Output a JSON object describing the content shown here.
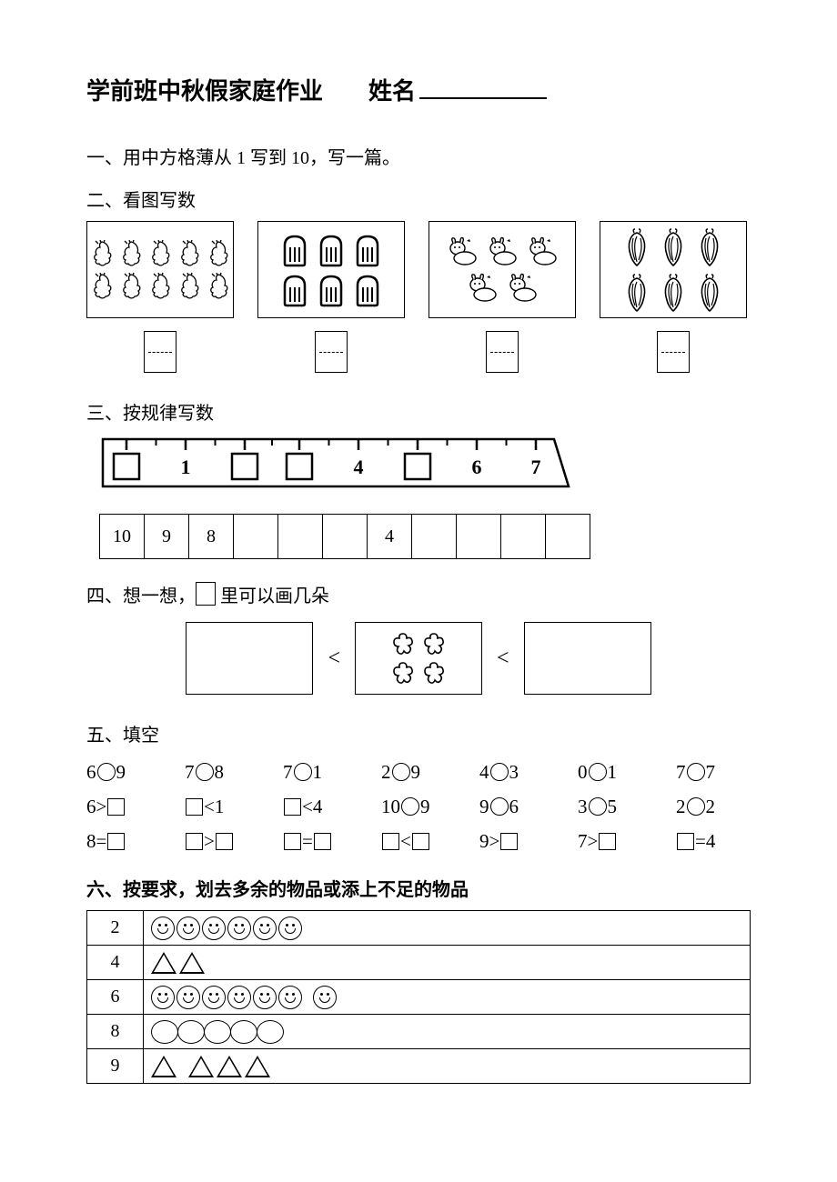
{
  "title": "学前班中秋假家庭作业",
  "name_label": "姓名",
  "q1": "一、用中方格薄从 1 写到 10，写一篇。",
  "q2": {
    "heading": "二、看图写数",
    "boxes": [
      {
        "width": 162,
        "rows": [
          5,
          5
        ],
        "icon": "shrimp"
      },
      {
        "width": 162,
        "rows": [
          3,
          3
        ],
        "icon": "bread"
      },
      {
        "width": 162,
        "rows": [
          3,
          2
        ],
        "icon": "bunny"
      },
      {
        "width": 162,
        "rows": [
          3,
          3
        ],
        "icon": "veg"
      }
    ]
  },
  "q3": {
    "heading": "三、按规律写数",
    "ruler_visible": [
      "1",
      "4",
      "6",
      "7"
    ],
    "table": [
      "10",
      "9",
      "8",
      "",
      "",
      "",
      "4",
      "",
      "",
      "",
      ""
    ]
  },
  "q4": {
    "heading_pre": "四、想一想，",
    "heading_post": " 里可以画几朵",
    "op": "<",
    "flowers": [
      2,
      2
    ]
  },
  "q5": {
    "heading": "五、填空",
    "rows": [
      [
        {
          "t": "nc",
          "a": "6",
          "b": "9"
        },
        {
          "t": "nc",
          "a": "7",
          "b": "8"
        },
        {
          "t": "nc",
          "a": "7",
          "b": "1"
        },
        {
          "t": "nc",
          "a": "2",
          "b": "9"
        },
        {
          "t": "nc",
          "a": "4",
          "b": "3"
        },
        {
          "t": "nc",
          "a": "0",
          "b": "1"
        },
        {
          "t": "nc",
          "a": "7",
          "b": "7"
        }
      ],
      [
        {
          "t": "ns",
          "a": "6",
          "op": ">"
        },
        {
          "t": "sn",
          "op": "<",
          "b": "1"
        },
        {
          "t": "sn",
          "op": "<",
          "b": "4"
        },
        {
          "t": "nc",
          "a": "10",
          "b": "9"
        },
        {
          "t": "nc",
          "a": "9",
          "b": "6"
        },
        {
          "t": "nc",
          "a": "3",
          "b": "5"
        },
        {
          "t": "nc",
          "a": "2",
          "b": "2"
        }
      ],
      [
        {
          "t": "ns",
          "a": "8",
          "op": "="
        },
        {
          "t": "ss",
          "op": ">"
        },
        {
          "t": "ss",
          "op": "="
        },
        {
          "t": "ss",
          "op": "<"
        },
        {
          "t": "ns",
          "a": "9",
          "op": ">"
        },
        {
          "t": "ns",
          "a": "7",
          "op": ">"
        },
        {
          "t": "sn",
          "op": "=",
          "b": "4"
        }
      ]
    ]
  },
  "q6": {
    "heading": "六、按要求，划去多余的物品或添上不足的物品",
    "rows": [
      {
        "n": "2",
        "shapes": [
          {
            "k": "smile",
            "c": 6
          }
        ]
      },
      {
        "n": "4",
        "shapes": [
          {
            "k": "tri",
            "c": 2
          }
        ]
      },
      {
        "n": "6",
        "shapes": [
          {
            "k": "smile",
            "c": 6
          },
          {
            "k": "gap"
          },
          {
            "k": "smile",
            "c": 1
          }
        ]
      },
      {
        "n": "8",
        "shapes": [
          {
            "k": "oval",
            "c": 5
          }
        ]
      },
      {
        "n": "9",
        "shapes": [
          {
            "k": "tri",
            "c": 1
          },
          {
            "k": "gap"
          },
          {
            "k": "tri",
            "c": 3
          }
        ]
      }
    ]
  }
}
